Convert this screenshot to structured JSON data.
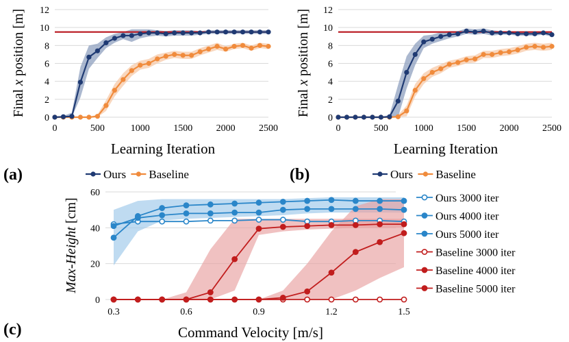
{
  "panel_labels": [
    "(a)",
    "(b)",
    "(c)"
  ],
  "colors": {
    "ours": "#1f3a73",
    "ours_band": "#8fa0bf",
    "baseline": "#f08b3c",
    "baseline_band": "#f7c9a8",
    "ref_line": "#b8141c",
    "ours_iter": "#2a86c9",
    "ours_iter_band": "#9cc8ea",
    "base_iter": "#c11d1d",
    "base_iter_band": "#e8a0a0"
  },
  "chart_data": [
    {
      "id": "a",
      "type": "line",
      "xlabel": "Learning Iteration",
      "ylabel": "Final x position [m]",
      "xlim": [
        0,
        2500
      ],
      "ylim": [
        0,
        12
      ],
      "xticks": [
        0,
        500,
        1000,
        1500,
        2000,
        2500
      ],
      "yticks": [
        0,
        2,
        4,
        6,
        8,
        10,
        12
      ],
      "reference_line": 9.5,
      "x": [
        0,
        100,
        200,
        300,
        400,
        500,
        600,
        700,
        800,
        900,
        1000,
        1100,
        1200,
        1300,
        1400,
        1500,
        1600,
        1700,
        1800,
        1900,
        2000,
        2100,
        2200,
        2300,
        2400,
        2500
      ],
      "series": [
        {
          "name": "Ours",
          "values": [
            0,
            0.05,
            0.1,
            3.9,
            6.7,
            7.4,
            8.3,
            8.8,
            9.1,
            9.1,
            9.3,
            9.4,
            9.4,
            9.3,
            9.4,
            9.4,
            9.4,
            9.4,
            9.5,
            9.5,
            9.5,
            9.5,
            9.5,
            9.5,
            9.5,
            9.5
          ],
          "band": [
            0,
            0.1,
            0.4,
            1.7,
            1.3,
            0.8,
            0.6,
            0.5,
            0.4,
            0.7,
            0.5,
            0.4,
            0.3,
            0.3,
            0.3,
            0.3,
            0.3,
            0.2,
            0.2,
            0.2,
            0.2,
            0.2,
            0.2,
            0.2,
            0.2,
            0.2
          ]
        },
        {
          "name": "Baseline",
          "values": [
            0,
            0,
            0,
            0,
            0,
            0.1,
            1.3,
            3.0,
            4.2,
            5.2,
            5.8,
            6.0,
            6.5,
            6.8,
            7.0,
            6.9,
            6.9,
            7.3,
            7.6,
            7.9,
            7.6,
            7.9,
            8.0,
            7.7,
            8.0,
            7.9
          ],
          "band": [
            0,
            0,
            0,
            0,
            0,
            0.2,
            0.6,
            0.7,
            0.7,
            0.6,
            0.5,
            0.5,
            0.5,
            0.4,
            0.4,
            0.4,
            0.4,
            0.4,
            0.4,
            0.4,
            0.3,
            0.3,
            0.3,
            0.3,
            0.3,
            0.3
          ]
        }
      ],
      "legend": [
        "Ours",
        "Baseline"
      ]
    },
    {
      "id": "b",
      "type": "line",
      "xlabel": "Learning Iteration",
      "ylabel": "Final x position [m]",
      "xlim": [
        0,
        2500
      ],
      "ylim": [
        0,
        12
      ],
      "xticks": [
        0,
        500,
        1000,
        1500,
        2000,
        2500
      ],
      "yticks": [
        0,
        2,
        4,
        6,
        8,
        10,
        12
      ],
      "reference_line": 9.5,
      "x": [
        0,
        100,
        200,
        300,
        400,
        500,
        600,
        700,
        800,
        900,
        1000,
        1100,
        1200,
        1300,
        1400,
        1500,
        1600,
        1700,
        1800,
        1900,
        2000,
        2100,
        2200,
        2300,
        2400,
        2500
      ],
      "series": [
        {
          "name": "Ours",
          "values": [
            0,
            0,
            0,
            0,
            0,
            0,
            0.05,
            1.8,
            5.0,
            7.0,
            8.4,
            8.7,
            9.0,
            9.2,
            9.3,
            9.6,
            9.5,
            9.6,
            9.4,
            9.4,
            9.4,
            9.3,
            9.3,
            9.3,
            9.4,
            9.2
          ],
          "band": [
            0,
            0,
            0,
            0,
            0,
            0,
            0.2,
            1.8,
            1.8,
            1.2,
            0.7,
            0.5,
            0.5,
            0.4,
            0.3,
            0.3,
            0.3,
            0.3,
            0.3,
            0.2,
            0.2,
            0.2,
            0.2,
            0.2,
            0.2,
            0.2
          ]
        },
        {
          "name": "Baseline",
          "values": [
            0,
            0,
            0,
            0,
            0,
            0,
            0,
            0.05,
            0.7,
            3.0,
            4.3,
            5.0,
            5.4,
            5.9,
            6.1,
            6.4,
            6.5,
            7.0,
            7.0,
            7.2,
            7.3,
            7.5,
            7.8,
            7.9,
            7.8,
            7.9
          ],
          "band": [
            0,
            0,
            0,
            0,
            0,
            0,
            0,
            0.2,
            0.6,
            0.7,
            0.6,
            0.5,
            0.5,
            0.4,
            0.4,
            0.4,
            0.4,
            0.4,
            0.4,
            0.4,
            0.4,
            0.4,
            0.4,
            0.4,
            0.4,
            0.4
          ]
        }
      ],
      "legend": [
        "Ours",
        "Baseline"
      ]
    },
    {
      "id": "c",
      "type": "line",
      "xlabel": "Command Velocity [m/s]",
      "ylabel": "Max-Height [cm]",
      "xlim": [
        0.3,
        1.5
      ],
      "ylim": [
        0,
        60
      ],
      "xticks": [
        0.3,
        0.6,
        0.9,
        1.2,
        1.5
      ],
      "yticks": [
        0,
        20,
        40,
        60
      ],
      "x": [
        0.3,
        0.4,
        0.5,
        0.6,
        0.7,
        0.8,
        0.9,
        1.0,
        1.1,
        1.2,
        1.3,
        1.4,
        1.5
      ],
      "series": [
        {
          "name": "Ours 3000 iter",
          "group": "ours",
          "marker": "open",
          "values": [
            42,
            43.5,
            43.5,
            43.5,
            44,
            44,
            44.5,
            44.5,
            43.5,
            43.5,
            44,
            44,
            43.5
          ],
          "band": null
        },
        {
          "name": "Ours 4000 iter",
          "group": "ours",
          "marker": "filled",
          "values": [
            41,
            45.5,
            47,
            48,
            48,
            48.5,
            48.5,
            50,
            50.5,
            50.5,
            50.5,
            50.5,
            50
          ],
          "band": null
        },
        {
          "name": "Ours 5000 iter",
          "group": "ours",
          "marker": "filled",
          "values": [
            34.5,
            46.5,
            51,
            52.5,
            53,
            53.5,
            54,
            54.5,
            55,
            55.5,
            55,
            55,
            55
          ],
          "band_lower": [
            19,
            38,
            44,
            45,
            45.5,
            46,
            46.5,
            47,
            48,
            48.5,
            48.5,
            48.5,
            48.5
          ],
          "band_upper": [
            50,
            55,
            56,
            56,
            56,
            56,
            56,
            56,
            56.5,
            57,
            57,
            57,
            57
          ]
        },
        {
          "name": "Baseline 3000 iter",
          "group": "base",
          "marker": "open",
          "values": [
            0,
            0,
            0,
            0,
            0,
            0,
            0,
            0,
            0,
            0,
            0,
            0,
            0
          ],
          "band": null
        },
        {
          "name": "Baseline 4000 iter",
          "group": "base",
          "marker": "filled",
          "values": [
            0,
            0,
            0,
            0,
            0,
            0,
            0,
            1,
            4.5,
            15,
            26.5,
            32,
            37
          ],
          "band_lower": [
            0,
            0,
            0,
            0,
            0,
            0,
            0,
            0,
            0,
            0,
            5,
            12,
            18
          ],
          "band_upper": [
            0,
            0,
            0,
            0,
            0,
            0,
            0,
            5,
            20,
            38,
            52,
            56,
            56
          ]
        },
        {
          "name": "Baseline 5000 iter",
          "group": "base",
          "marker": "filled",
          "values": [
            0,
            0,
            0,
            0,
            4,
            22.5,
            39.5,
            40.5,
            41,
            41.5,
            41.5,
            42,
            42
          ],
          "band_lower": [
            0,
            0,
            0,
            0,
            0,
            5,
            36,
            38,
            39,
            39.5,
            40,
            40,
            40
          ],
          "band_upper": [
            0,
            0,
            0,
            4,
            28,
            45,
            45,
            45,
            45,
            45,
            45,
            45,
            45
          ]
        }
      ],
      "legend": [
        "Ours 3000 iter",
        "Ours 4000 iter",
        "Ours 5000 iter",
        "Baseline 3000 iter",
        "Baseline 4000 iter",
        "Baseline 5000 iter"
      ]
    }
  ]
}
